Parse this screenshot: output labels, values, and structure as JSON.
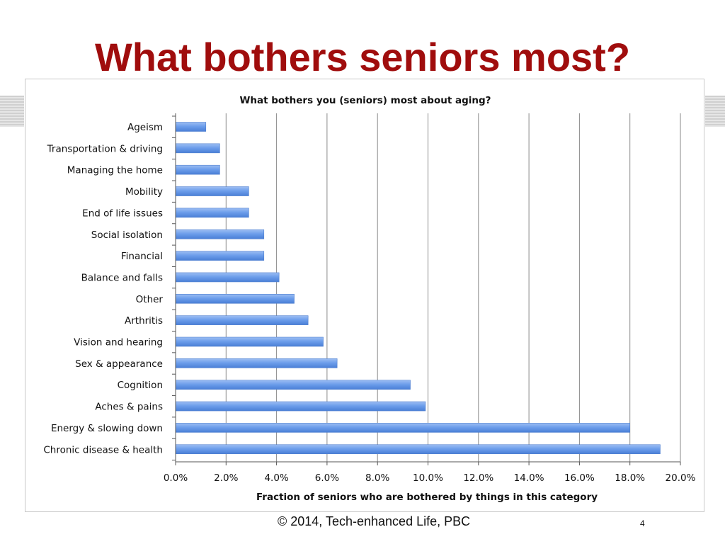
{
  "slide": {
    "title": "What bothers seniors most?",
    "footer": "© 2014, Tech-enhanced Life, PBC",
    "page_number": "4"
  },
  "chart_data": {
    "type": "bar",
    "orientation": "horizontal",
    "title": "What bothers you (seniors) most about aging?",
    "xlabel": "Fraction of seniors who are bothered by things in this category",
    "ylabel": "",
    "categories": [
      "Ageism",
      "Transportation & driving",
      "Managing the home",
      "Mobility",
      "End of life issues",
      "Social isolation",
      "Financial",
      "Balance and falls",
      "Other",
      "Arthritis",
      "Vision and hearing",
      "Sex & appearance",
      "Cognition",
      "Aches & pains",
      "Energy & slowing down",
      "Chronic disease & health"
    ],
    "values": [
      1.2,
      1.75,
      1.75,
      2.9,
      2.9,
      3.5,
      3.5,
      4.1,
      4.7,
      5.25,
      5.85,
      6.4,
      9.3,
      9.9,
      18.0,
      19.2
    ],
    "xlim": [
      0,
      20
    ],
    "xticks": [
      "0.0%",
      "2.0%",
      "4.0%",
      "6.0%",
      "8.0%",
      "10.0%",
      "12.0%",
      "14.0%",
      "16.0%",
      "18.0%",
      "20.0%"
    ],
    "grid": "vertical",
    "legend": "none",
    "bar_color": "#6d9eeb"
  }
}
